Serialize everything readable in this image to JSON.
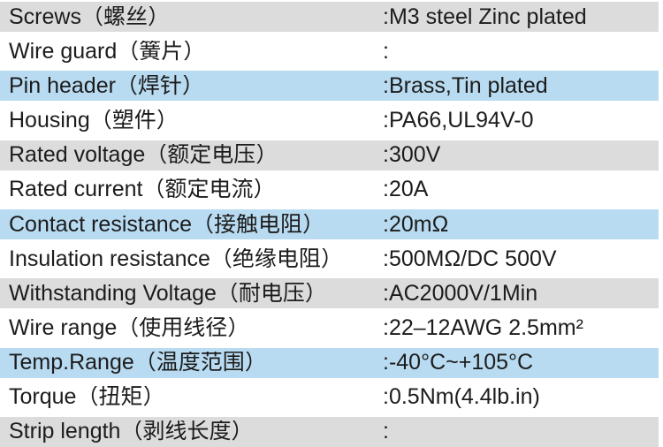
{
  "table": {
    "colors": {
      "gray": "#dcdcdc",
      "blue": "#b9dbf1",
      "text": "#1c1c1c",
      "background": "#ffffff"
    },
    "rows": [
      {
        "label": "Screws（螺丝）",
        "value": ":M3 steel Zinc plated",
        "bg": "gray"
      },
      {
        "label": "Wire guard（簧片）",
        "value": ":",
        "bg": "white"
      },
      {
        "label": "Pin header（焊针）",
        "value": ":Brass,Tin plated",
        "bg": "blue"
      },
      {
        "label": "Housing（塑件）",
        "value": ":PA66,UL94V-0",
        "bg": "white"
      },
      {
        "label": "Rated voltage（额定电压）",
        "value": ":300V",
        "bg": "gray"
      },
      {
        "label": "Rated current（额定电流）",
        "value": ":20A",
        "bg": "white"
      },
      {
        "label": "Contact resistance（接触电阻）",
        "value": ":20mΩ",
        "bg": "blue"
      },
      {
        "label": "Insulation resistance（绝缘电阻）",
        "value": ":500MΩ/DC 500V",
        "bg": "white"
      },
      {
        "label": "Withstanding Voltage（耐电压）",
        "value": ":AC2000V/1Min",
        "bg": "gray"
      },
      {
        "label": "Wire range（使用线径）",
        "value": ":22–12AWG 2.5mm²",
        "bg": "white"
      },
      {
        "label": "Temp.Range（温度范围）",
        "value": ":-40°C~+105°C",
        "bg": "blue"
      },
      {
        "label": "Torque（扭矩）",
        "value": ":0.5Nm(4.4lb.in)",
        "bg": "white"
      },
      {
        "label": "Strip length（剥线长度）",
        "value": ":",
        "bg": "gray"
      }
    ]
  }
}
